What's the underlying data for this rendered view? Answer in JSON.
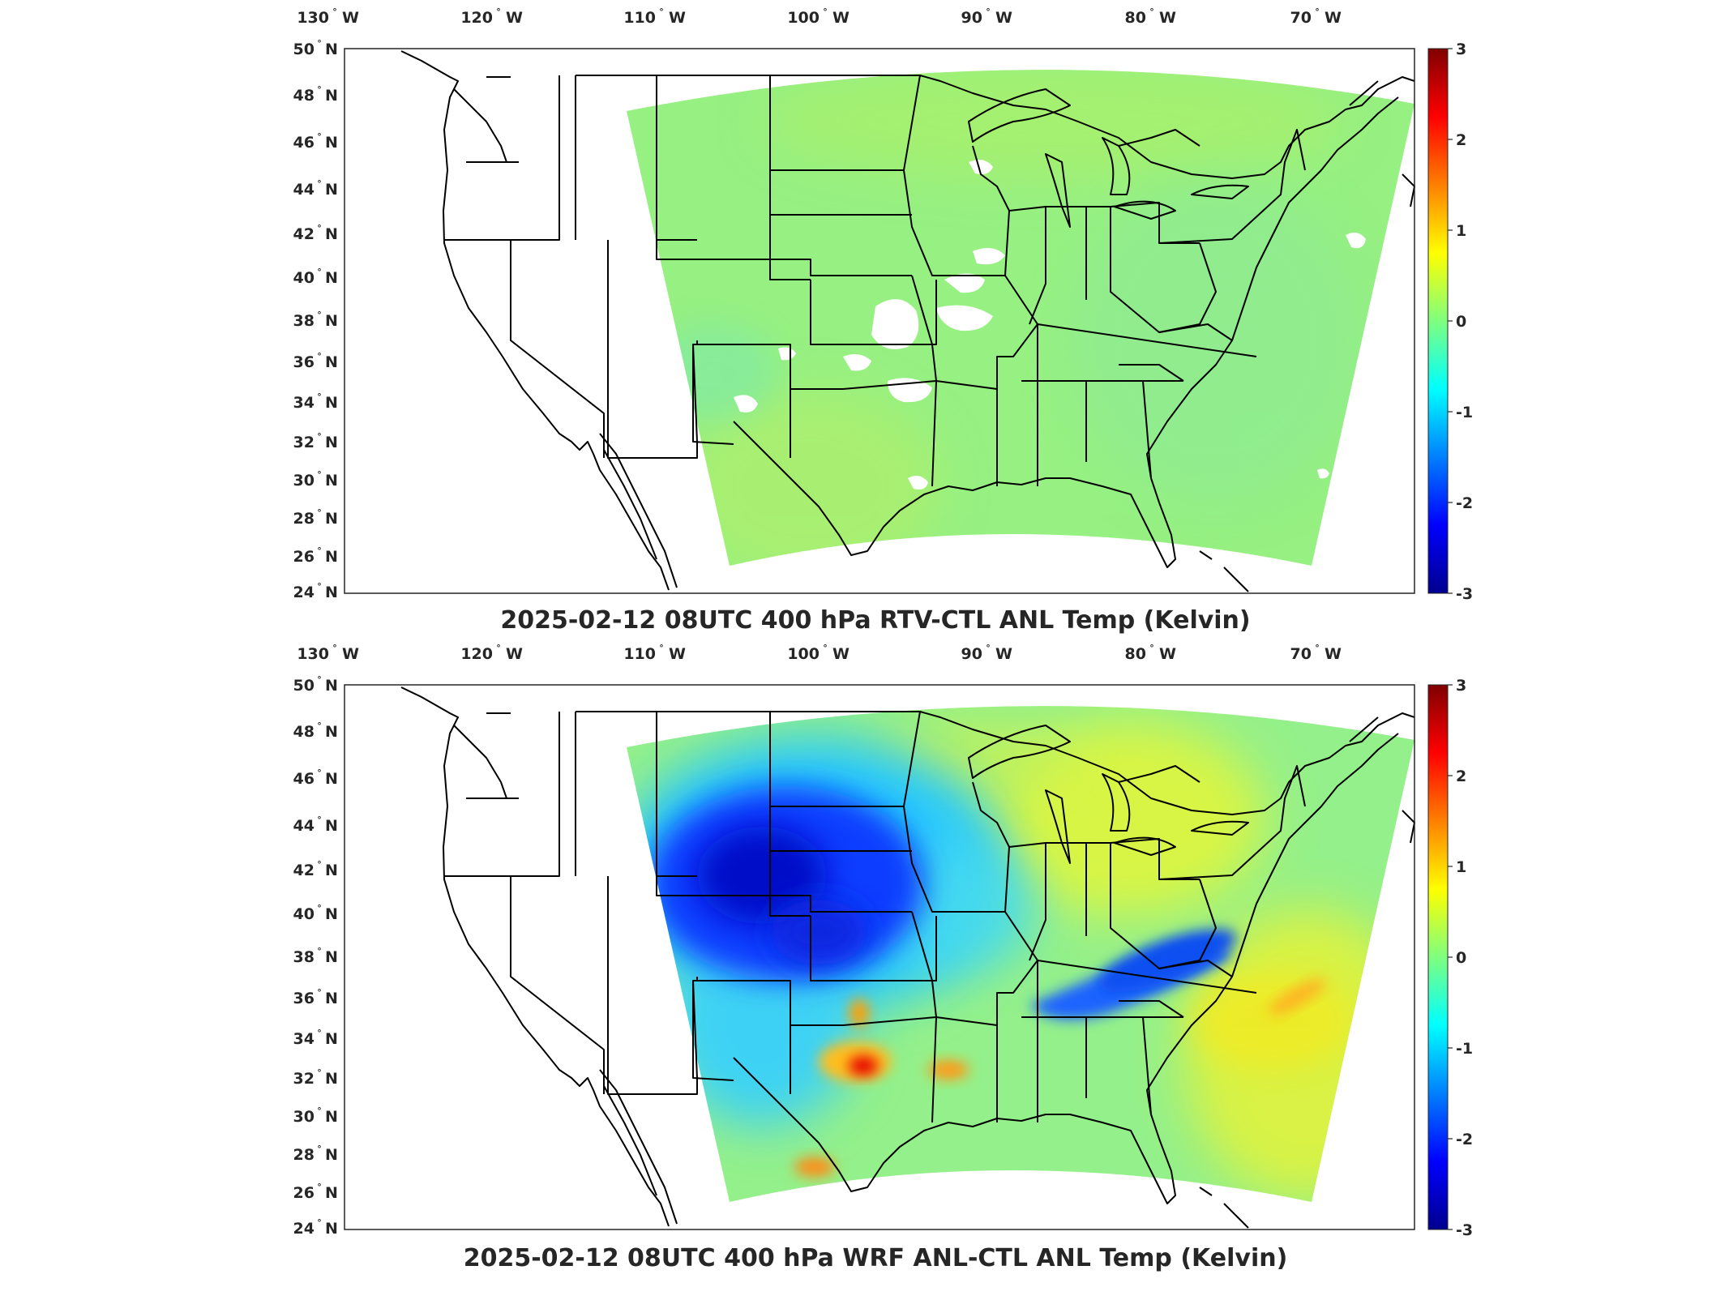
{
  "charts": [
    {
      "id": "top",
      "title": "2025-02-12 08UTC 400 hPa RTV-CTL ANL Temp (Kelvin)"
    },
    {
      "id": "bottom",
      "title": "2025-02-12 08UTC 400 hPa WRF ANL-CTL ANL Temp (Kelvin)"
    }
  ],
  "chart_data": [
    {
      "type": "heatmap",
      "title": "2025-02-12 08UTC 400 hPa RTV-CTL ANL Temp (Kelvin)",
      "x_ticks": [
        "130",
        "120",
        "110",
        "100",
        "90",
        "80",
        "70"
      ],
      "x_tick_suffix": "W",
      "y_ticks": [
        "50",
        "48",
        "46",
        "44",
        "42",
        "40",
        "38",
        "36",
        "34",
        "32",
        "30",
        "28",
        "26",
        "24"
      ],
      "y_tick_suffix": "N",
      "colorbar": {
        "min": -3,
        "max": 3,
        "ticks": [
          "3",
          "2",
          "1",
          "0",
          "-1",
          "-2",
          "-3"
        ],
        "colormap": "jet"
      },
      "field_summary": "near-zero differences (about 0 to +0.5 K) everywhere, with white gaps over Kansas/Oklahoma/New Mexico"
    },
    {
      "type": "heatmap",
      "title": "2025-02-12 08UTC 400 hPa WRF ANL-CTL ANL Temp (Kelvin)",
      "x_ticks": [
        "130",
        "120",
        "110",
        "100",
        "90",
        "80",
        "70"
      ],
      "x_tick_suffix": "W",
      "y_ticks": [
        "50",
        "48",
        "46",
        "44",
        "42",
        "40",
        "38",
        "36",
        "34",
        "32",
        "30",
        "28",
        "26",
        "24"
      ],
      "y_tick_suffix": "N",
      "colorbar": {
        "min": -3,
        "max": 3,
        "ticks": [
          "3",
          "2",
          "1",
          "0",
          "-1",
          "-2",
          "-3"
        ],
        "colormap": "jet"
      },
      "field_summary": "strong cold anomaly (about -2.5 K) over the central Rockies/Plains, cold band over Tennessee/Virginia, warm spots (+2 to +3 K) over west Texas, mild warming (+0.5 K) over the northeast and Atlantic"
    }
  ],
  "colors": {
    "axis": "#262626",
    "map_lines": "#000000"
  }
}
